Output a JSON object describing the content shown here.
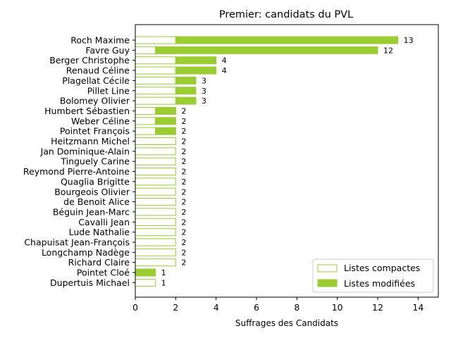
{
  "chart_data": {
    "type": "bar",
    "orientation": "horizontal",
    "title": "Premier: candidats du PVL",
    "xlabel": "Suffrages des Candidats",
    "ylabel": "",
    "xlim": [
      0,
      15
    ],
    "xticks": [
      "0",
      "2",
      "4",
      "6",
      "8",
      "10",
      "12",
      "14"
    ],
    "grid": false,
    "legend_position": "lower-right",
    "colors": {
      "accent": "#9acd32",
      "edge": "#9acd32",
      "compact_fill": "#ffffff"
    },
    "categories": [
      "Roch Maxime",
      "Favre Guy",
      "Berger Christophe",
      "Renaud Céline",
      "Plagellat Cécile",
      "Pillet Line",
      "Bolomey Olivier",
      "Humbert Sébastien",
      "Weber Céline",
      "Pointet François",
      "Heitzmann Michel",
      "Jan Dominique-Alain",
      "Tinguely Carine",
      "Reymond Pierre-Antoine",
      "Quaglia Brigitte",
      "Bourgeois Olivier",
      "de Benoit Alice",
      "Béguin Jean-Marc",
      "Cavalli Jean",
      "Lude Nathalie",
      "Chapuisat Jean-François",
      "Longchamp Nadège",
      "Richard Claire",
      "Pointet Cloé",
      "Dupertuis Michael"
    ],
    "series": [
      {
        "name": "Listes compactes",
        "values": [
          2,
          1,
          2,
          2,
          2,
          2,
          2,
          1,
          1,
          1,
          2,
          2,
          2,
          2,
          2,
          2,
          2,
          2,
          2,
          2,
          2,
          2,
          2,
          0,
          1
        ]
      },
      {
        "name": "Listes modifiées",
        "values": [
          11,
          11,
          2,
          2,
          1,
          1,
          1,
          1,
          1,
          1,
          0,
          0,
          0,
          0,
          0,
          0,
          0,
          0,
          0,
          0,
          0,
          0,
          0,
          1,
          0
        ]
      }
    ],
    "totals": [
      "13",
      "12",
      "4",
      "4",
      "3",
      "3",
      "3",
      "2",
      "2",
      "2",
      "2",
      "2",
      "2",
      "2",
      "2",
      "2",
      "2",
      "2",
      "2",
      "2",
      "2",
      "2",
      "2",
      "1",
      "1"
    ]
  }
}
